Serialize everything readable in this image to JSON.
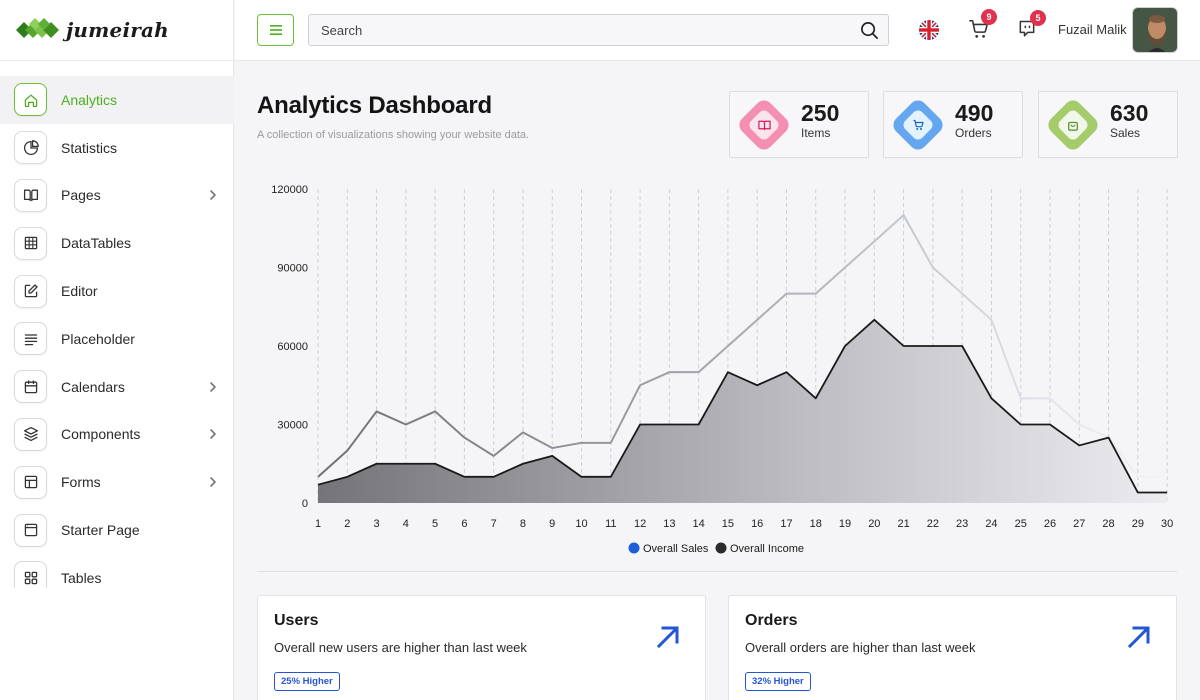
{
  "brand": {
    "name": "jumeirah"
  },
  "sidebar": {
    "items": [
      {
        "label": "Analytics",
        "icon": "home-icon",
        "active": true,
        "chevron": false
      },
      {
        "label": "Statistics",
        "icon": "pie-chart-icon",
        "active": false,
        "chevron": false
      },
      {
        "label": "Pages",
        "icon": "book-icon",
        "active": false,
        "chevron": true
      },
      {
        "label": "DataTables",
        "icon": "grid-icon",
        "active": false,
        "chevron": false
      },
      {
        "label": "Editor",
        "icon": "edit-icon",
        "active": false,
        "chevron": false
      },
      {
        "label": "Placeholder",
        "icon": "align-left-icon",
        "active": false,
        "chevron": false
      },
      {
        "label": "Calendars",
        "icon": "calendar-icon",
        "active": false,
        "chevron": true
      },
      {
        "label": "Components",
        "icon": "layers-icon",
        "active": false,
        "chevron": true
      },
      {
        "label": "Forms",
        "icon": "layout-icon",
        "active": false,
        "chevron": true
      },
      {
        "label": "Starter Page",
        "icon": "window-icon",
        "active": false,
        "chevron": false
      },
      {
        "label": "Tables",
        "icon": "apps-icon",
        "active": false,
        "chevron": false
      }
    ]
  },
  "header": {
    "search_placeholder": "Search",
    "cart_count": "9",
    "chat_count": "5",
    "user_name": "Fuzail Malik"
  },
  "page": {
    "title": "Analytics Dashboard",
    "subtitle": "A collection of visualizations showing your website data."
  },
  "stats": [
    {
      "value": "250",
      "label": "Items",
      "color": "#f48fb1",
      "front": "#fce4ec",
      "icon_color": "#d81b60"
    },
    {
      "value": "490",
      "label": "Orders",
      "color": "#64a6ef",
      "front": "#e3f2fd",
      "icon_color": "#1565c0"
    },
    {
      "value": "630",
      "label": "Sales",
      "color": "#a5cc6a",
      "front": "#f1f8e9",
      "icon_color": "#558b2f"
    }
  ],
  "chart_data": {
    "type": "area",
    "x": [
      1,
      2,
      3,
      4,
      5,
      6,
      7,
      8,
      9,
      10,
      11,
      12,
      13,
      14,
      15,
      16,
      17,
      18,
      19,
      20,
      21,
      22,
      23,
      24,
      25,
      26,
      27,
      28,
      29,
      30
    ],
    "ylim": [
      0,
      120000
    ],
    "yticks": [
      0,
      30000,
      60000,
      90000,
      120000
    ],
    "grid": "vertical-dashed",
    "legend_position": "bottom",
    "series": [
      {
        "name": "Overall Sales",
        "legend_color": "#1d5fd8",
        "values": [
          10000,
          20000,
          35000,
          30000,
          35000,
          25000,
          18000,
          27000,
          21000,
          23000,
          23000,
          45000,
          50000,
          50000,
          60000,
          70000,
          80000,
          80000,
          90000,
          100000,
          110000,
          90000,
          80000,
          70000,
          40000,
          40000,
          30000,
          25000,
          10000,
          10000
        ]
      },
      {
        "name": "Overall Income",
        "legend_color": "#2b2b2b",
        "values": [
          7000,
          10000,
          15000,
          15000,
          15000,
          10000,
          10000,
          15000,
          18000,
          10000,
          10000,
          30000,
          30000,
          30000,
          50000,
          45000,
          50000,
          40000,
          60000,
          70000,
          60000,
          60000,
          60000,
          40000,
          30000,
          30000,
          22000,
          25000,
          4000,
          4000
        ]
      }
    ]
  },
  "cards": [
    {
      "title": "Users",
      "desc": "Overall new users are higher than last week",
      "badge": "25% Higher"
    },
    {
      "title": "Orders",
      "desc": "Overall orders are higher than last week",
      "badge": "32% Higher"
    }
  ],
  "colors": {
    "accent": "#4caf1e",
    "badge_red": "#e0314e",
    "blue": "#2456d6"
  }
}
